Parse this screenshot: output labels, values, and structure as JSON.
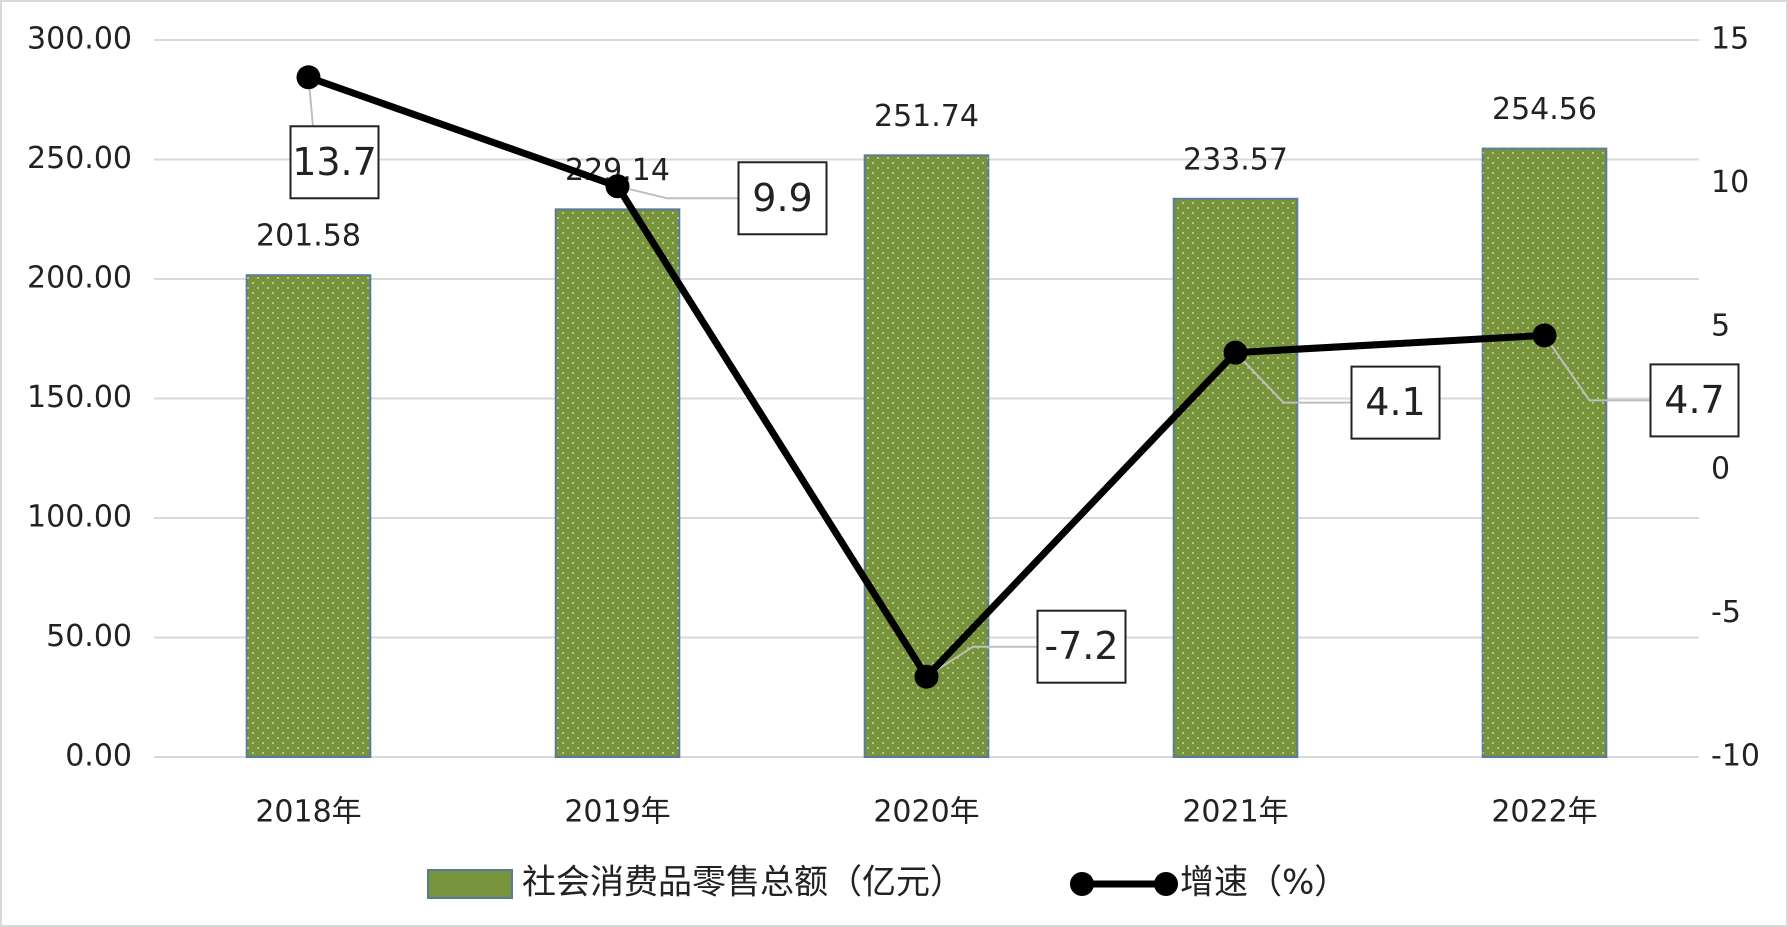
{
  "chart_data": {
    "type": "bar",
    "categories": [
      "2018年",
      "2019年",
      "2020年",
      "2021年",
      "2022年"
    ],
    "series": [
      {
        "name": "社会消费品零售总额（亿元）",
        "type": "bar",
        "color": "#77933c",
        "values": [
          201.58,
          229.14,
          251.74,
          233.57,
          254.56
        ]
      },
      {
        "name": "增速（%）",
        "type": "line",
        "axis": "y2",
        "color": "#000000",
        "values": [
          13.7,
          9.9,
          -7.2,
          4.1,
          4.7
        ]
      }
    ],
    "ylim": [
      0,
      300
    ],
    "yticks": [
      {
        "value": 0,
        "label": "0.00"
      },
      {
        "value": 50,
        "label": "50.00"
      },
      {
        "value": 100,
        "label": "100.00"
      },
      {
        "value": 150,
        "label": "150.00"
      },
      {
        "value": 200,
        "label": "200.00"
      },
      {
        "value": 250,
        "label": "250.00"
      },
      {
        "value": 300,
        "label": "300.00"
      }
    ],
    "y2lim": [
      -10,
      15
    ],
    "y2ticks": [
      -10,
      -5,
      0,
      5,
      10,
      15
    ],
    "grid": true,
    "legend": "bottom"
  }
}
